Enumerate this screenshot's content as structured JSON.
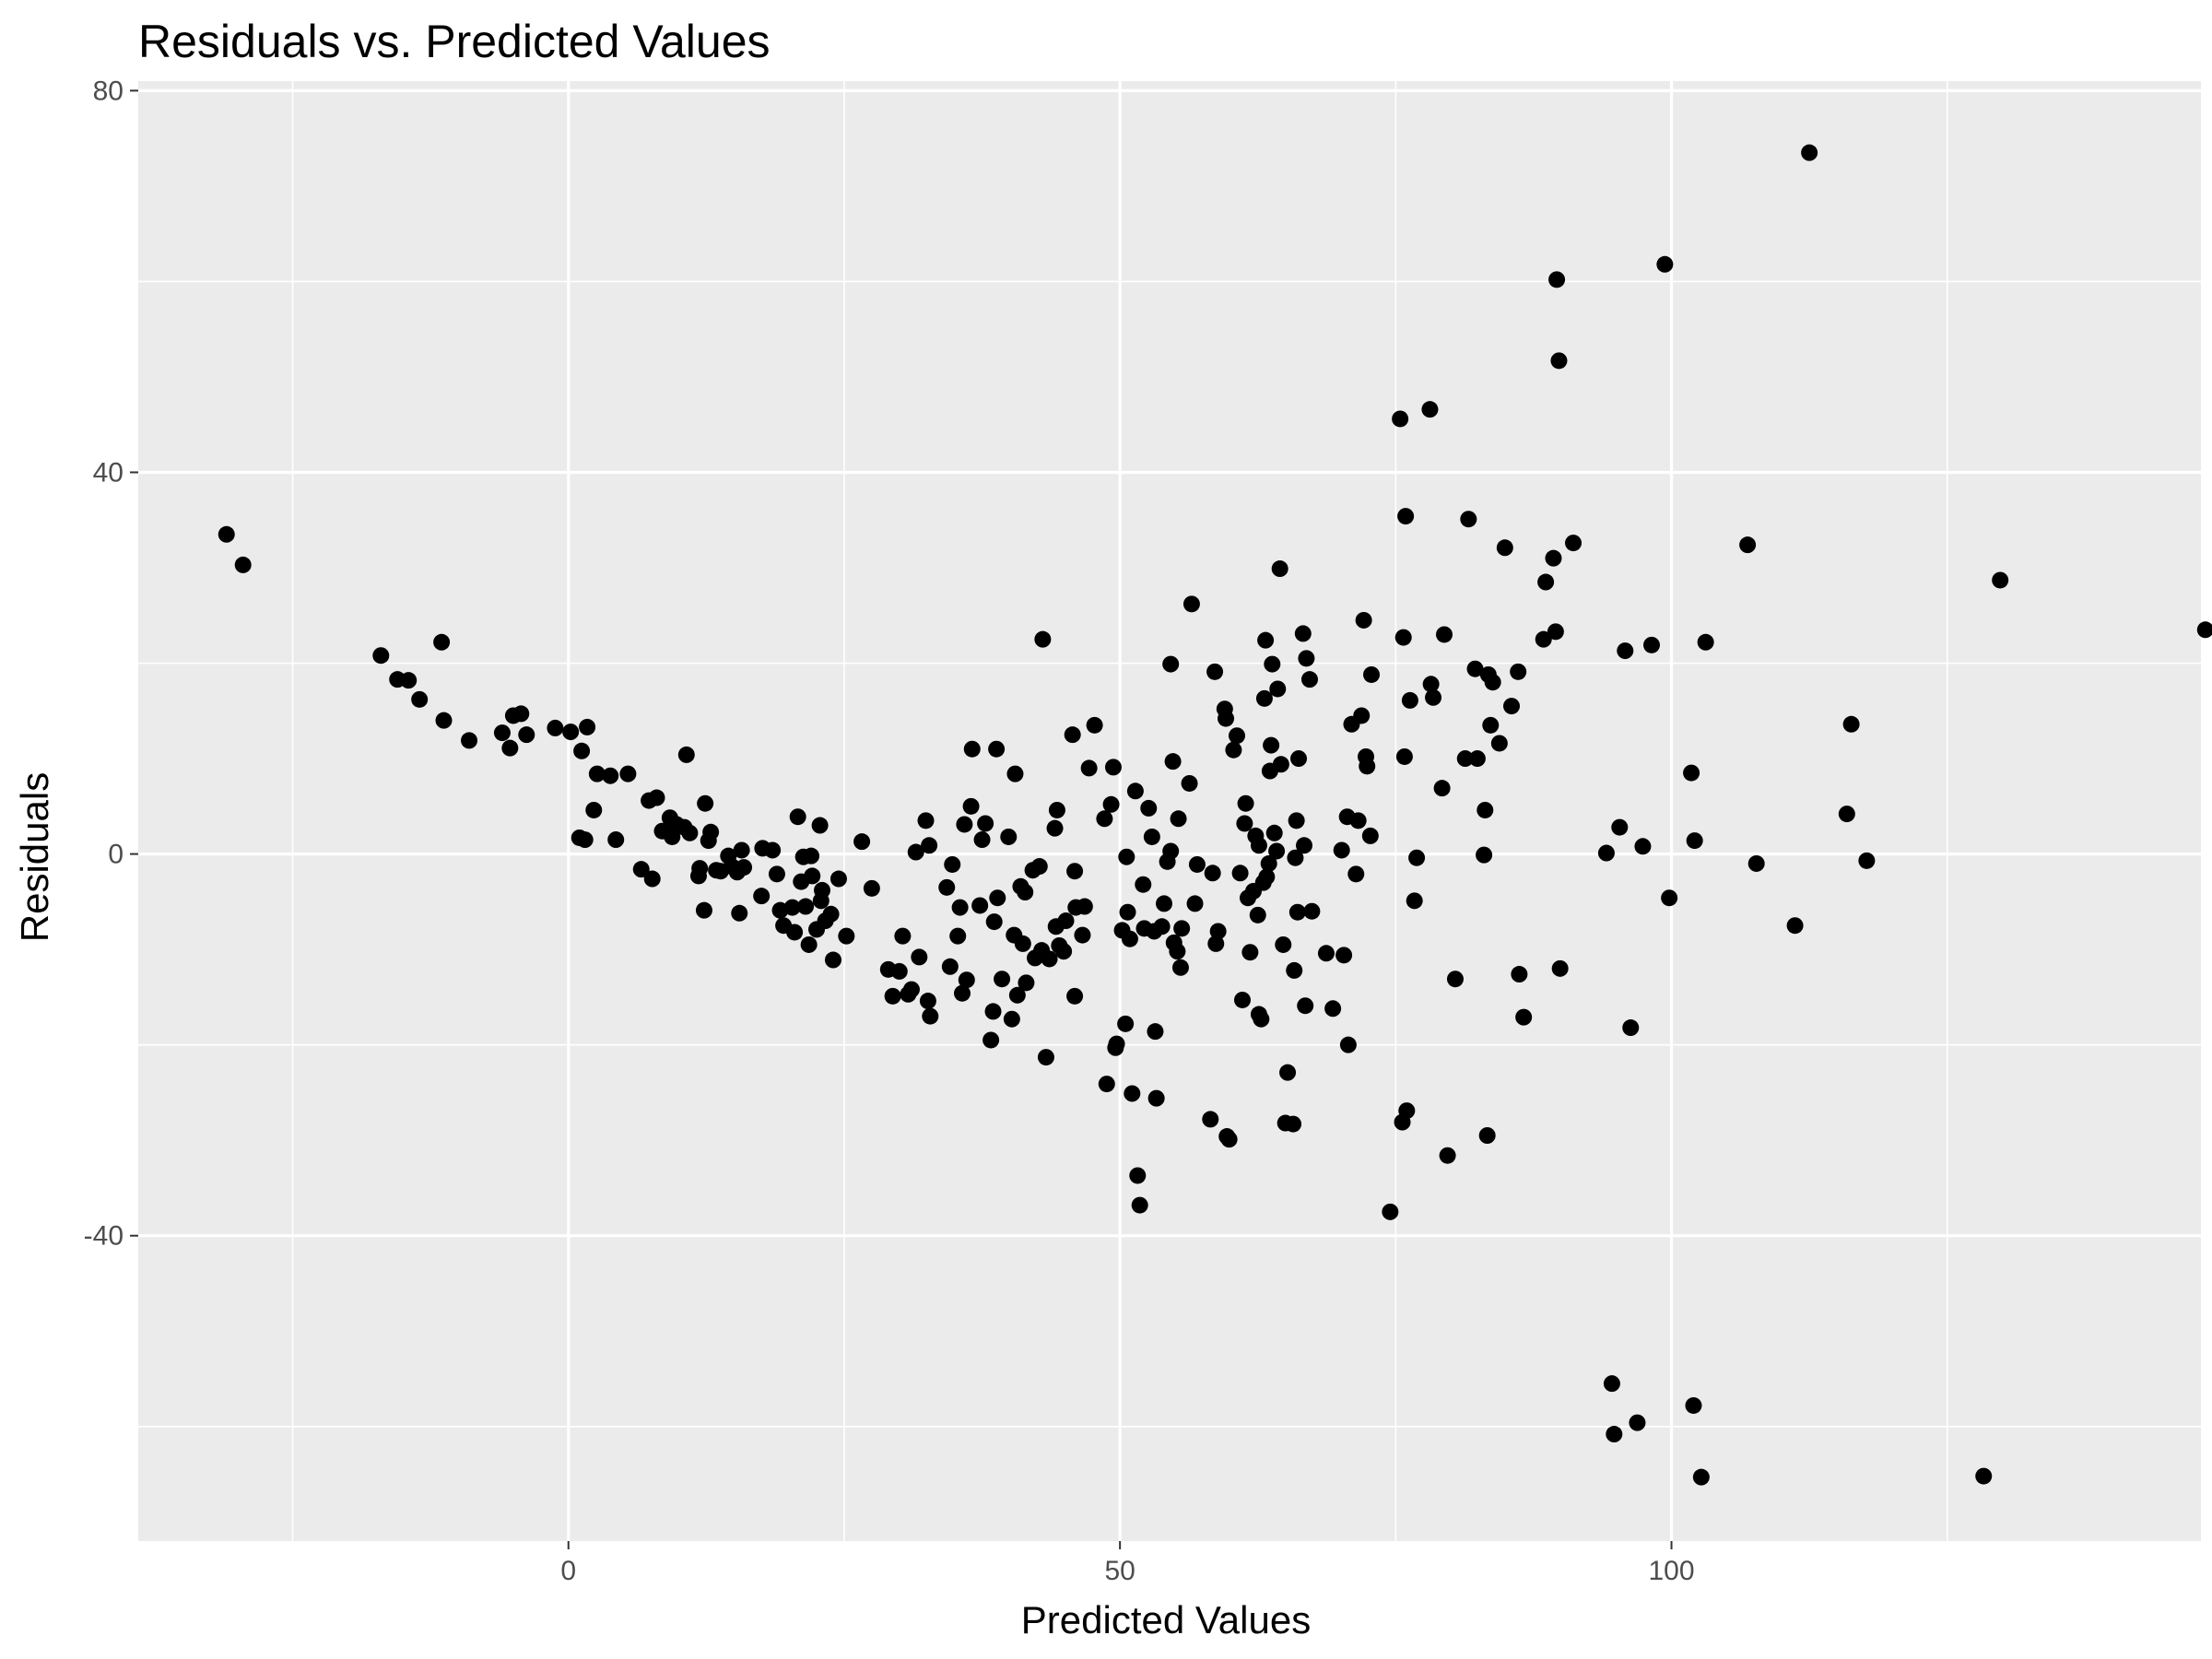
{
  "chart_data": {
    "type": "scatter",
    "title": "Residuals vs. Predicted Values",
    "xlabel": "Predicted Values",
    "ylabel": "Residuals",
    "xlim": [
      -39,
      148
    ],
    "ylim": [
      -72,
      81
    ],
    "x_ticks": [
      0,
      50,
      100
    ],
    "x_tick_labels": [
      "0",
      "50",
      "100"
    ],
    "y_ticks": [
      -40,
      0,
      40,
      80
    ],
    "y_tick_labels": [
      "-40",
      "0",
      "40",
      "80"
    ],
    "grid": true,
    "legend": "none",
    "colors": {
      "panel": "#ebebeb",
      "grid": "#ffffff",
      "point": "#000000"
    },
    "series": [
      {
        "points": [
          [
            -31,
            33.5
          ],
          [
            -29.5,
            30.3
          ],
          [
            -17,
            20.8
          ],
          [
            -15.5,
            18.3
          ],
          [
            -14.5,
            18.2
          ],
          [
            -13.5,
            16.2
          ],
          [
            -11.5,
            22.2
          ],
          [
            -11.3,
            14
          ],
          [
            -9,
            11.9
          ],
          [
            -6,
            12.7
          ],
          [
            -5.3,
            11.1
          ],
          [
            -5,
            14.5
          ],
          [
            -4.3,
            14.7
          ],
          [
            -3.8,
            12.5
          ],
          [
            -1.2,
            13.2
          ],
          [
            0.2,
            12.8
          ],
          [
            1,
            1.7
          ],
          [
            1.2,
            10.8
          ],
          [
            1.5,
            1.5
          ],
          [
            1.7,
            13.3
          ],
          [
            2.3,
            4.6
          ],
          [
            2.6,
            8.4
          ],
          [
            3.8,
            8.2
          ],
          [
            4.3,
            1.5
          ],
          [
            5.4,
            8.4
          ],
          [
            6.6,
            -1.6
          ],
          [
            7.3,
            5.6
          ],
          [
            7.6,
            -2.6
          ],
          [
            8,
            5.9
          ],
          [
            8.5,
            2.4
          ],
          [
            9.2,
            3.8
          ],
          [
            9.4,
            1.8
          ],
          [
            9.8,
            3.1
          ],
          [
            10.5,
            2.8
          ],
          [
            10.7,
            10.4
          ],
          [
            11,
            2.2
          ],
          [
            11.8,
            -2.3
          ],
          [
            11.9,
            -1.5
          ],
          [
            12.3,
            -5.9
          ],
          [
            12.4,
            5.3
          ],
          [
            12.7,
            1.4
          ],
          [
            12.9,
            2.3
          ],
          [
            13.4,
            -1.7
          ],
          [
            13.8,
            -1.8
          ],
          [
            14.5,
            -0.2
          ],
          [
            14.8,
            -1.3
          ],
          [
            15.3,
            -1.9
          ],
          [
            15.5,
            -6.2
          ],
          [
            15.7,
            0.4
          ],
          [
            15.9,
            -1.4
          ],
          [
            17.5,
            -4.4
          ],
          [
            17.6,
            0.6
          ],
          [
            18.5,
            0.4
          ],
          [
            18.9,
            -2.1
          ],
          [
            19.2,
            -5.9
          ],
          [
            19.5,
            -7.5
          ],
          [
            20.3,
            -5.6
          ],
          [
            20.5,
            -8.2
          ],
          [
            20.8,
            3.9
          ],
          [
            21.1,
            -2.9
          ],
          [
            21.3,
            -0.3
          ],
          [
            21.5,
            -5.5
          ],
          [
            21.8,
            -9.5
          ],
          [
            22,
            -0.2
          ],
          [
            22.1,
            -2.3
          ],
          [
            22.5,
            -7.9
          ],
          [
            22.8,
            3
          ],
          [
            22.9,
            -4.9
          ],
          [
            23,
            -3.8
          ],
          [
            23.3,
            -7
          ],
          [
            23.8,
            -6.3
          ],
          [
            24,
            -11.1
          ],
          [
            24.5,
            -2.6
          ],
          [
            25.2,
            -8.6
          ],
          [
            26.6,
            1.3
          ],
          [
            27.5,
            -3.6
          ],
          [
            29,
            -12.1
          ],
          [
            29.4,
            -14.9
          ],
          [
            30,
            -12.3
          ],
          [
            30.3,
            -8.6
          ],
          [
            30.8,
            -14.7
          ],
          [
            31.1,
            -14.2
          ],
          [
            31.5,
            0.2
          ],
          [
            31.8,
            -10.8
          ],
          [
            32.4,
            3.5
          ],
          [
            32.6,
            -15.4
          ],
          [
            32.7,
            0.9
          ],
          [
            32.8,
            -17
          ],
          [
            34.3,
            -3.5
          ],
          [
            34.6,
            -11.8
          ],
          [
            34.8,
            -1.1
          ],
          [
            35.3,
            -8.6
          ],
          [
            35.5,
            -5.6
          ],
          [
            35.7,
            -14.6
          ],
          [
            35.9,
            3.1
          ],
          [
            36.1,
            -13.2
          ],
          [
            36.5,
            5
          ],
          [
            36.6,
            11
          ],
          [
            37.3,
            -5.4
          ],
          [
            37.5,
            1.5
          ],
          [
            37.8,
            3.2
          ],
          [
            38.3,
            -19.5
          ],
          [
            38.5,
            -16.5
          ],
          [
            38.6,
            -7.1
          ],
          [
            38.8,
            11
          ],
          [
            38.9,
            -4.6
          ],
          [
            39.3,
            -13.1
          ],
          [
            39.9,
            1.8
          ],
          [
            40.2,
            -17.3
          ],
          [
            40.4,
            -8.5
          ],
          [
            40.5,
            8.4
          ],
          [
            40.7,
            -14.8
          ],
          [
            41,
            -3.4
          ],
          [
            41.2,
            -9.4
          ],
          [
            41.4,
            -4
          ],
          [
            41.5,
            -13.5
          ],
          [
            42.1,
            -1.7
          ],
          [
            42.3,
            -10.9
          ],
          [
            42.7,
            -1.3
          ],
          [
            42.9,
            -10.1
          ],
          [
            43,
            22.5
          ],
          [
            43.3,
            -21.3
          ],
          [
            43.6,
            -11
          ],
          [
            44.1,
            2.7
          ],
          [
            44.2,
            -7.6
          ],
          [
            44.3,
            4.6
          ],
          [
            44.5,
            -9.6
          ],
          [
            44.9,
            -10.2
          ],
          [
            45.1,
            -7
          ],
          [
            45.7,
            12.5
          ],
          [
            45.9,
            -1.8
          ],
          [
            45.9,
            -14.9
          ],
          [
            46,
            -5.6
          ],
          [
            46.6,
            -8.5
          ],
          [
            46.8,
            -5.5
          ],
          [
            47.2,
            9
          ],
          [
            47.7,
            13.5
          ],
          [
            48.6,
            3.7
          ],
          [
            48.8,
            -24.1
          ],
          [
            49.2,
            5.2
          ],
          [
            49.4,
            9.1
          ],
          [
            49.6,
            -20.3
          ],
          [
            49.7,
            -19.9
          ],
          [
            50.2,
            -8
          ],
          [
            50.5,
            -17.8
          ],
          [
            50.6,
            -0.3
          ],
          [
            50.7,
            -6.1
          ],
          [
            50.9,
            -8.9
          ],
          [
            51.1,
            -25.1
          ],
          [
            51.4,
            6.6
          ],
          [
            51.6,
            -33.7
          ],
          [
            51.8,
            -36.8
          ],
          [
            52.1,
            -3.2
          ],
          [
            52.2,
            -7.8
          ],
          [
            52.6,
            4.8
          ],
          [
            52.9,
            1.8
          ],
          [
            53.1,
            -8.1
          ],
          [
            53.2,
            -18.6
          ],
          [
            53.3,
            -25.6
          ],
          [
            53.8,
            -7.6
          ],
          [
            54,
            -5.2
          ],
          [
            54.3,
            -0.8
          ],
          [
            54.6,
            0.3
          ],
          [
            54.6,
            19.9
          ],
          [
            54.8,
            9.7
          ],
          [
            54.9,
            -9.3
          ],
          [
            55.2,
            -10.2
          ],
          [
            55.3,
            3.7
          ],
          [
            55.5,
            -11.9
          ],
          [
            55.6,
            -7.8
          ],
          [
            56.3,
            7.4
          ],
          [
            56.5,
            26.2
          ],
          [
            56.8,
            -5.2
          ],
          [
            57,
            -1.1
          ],
          [
            58.2,
            -27.8
          ],
          [
            58.4,
            -2
          ],
          [
            58.6,
            19.1
          ],
          [
            58.7,
            -9.4
          ],
          [
            58.9,
            -8.1
          ],
          [
            59.5,
            15.2
          ],
          [
            59.6,
            14.2
          ],
          [
            59.7,
            -29.6
          ],
          [
            59.9,
            -29.9
          ],
          [
            60.3,
            10.9
          ],
          [
            60.6,
            12.4
          ],
          [
            60.9,
            -2
          ],
          [
            61.1,
            -15.3
          ],
          [
            61.3,
            3.2
          ],
          [
            61.4,
            5.3
          ],
          [
            61.6,
            -4.6
          ],
          [
            61.8,
            -10.3
          ],
          [
            62.1,
            -3.9
          ],
          [
            62.3,
            1.9
          ],
          [
            62.5,
            -6.4
          ],
          [
            62.6,
            0.9
          ],
          [
            62.6,
            -16.8
          ],
          [
            62.8,
            -17.3
          ],
          [
            63,
            -3
          ],
          [
            63.1,
            16.3
          ],
          [
            63.2,
            22.4
          ],
          [
            63.3,
            -2.4
          ],
          [
            63.5,
            -1
          ],
          [
            63.6,
            8.7
          ],
          [
            63.7,
            11.4
          ],
          [
            63.8,
            19.9
          ],
          [
            64,
            2.2
          ],
          [
            64.2,
            0.3
          ],
          [
            64.3,
            17.3
          ],
          [
            64.5,
            29.9
          ],
          [
            64.6,
            9.4
          ],
          [
            64.8,
            -9.5
          ],
          [
            65,
            -28.2
          ],
          [
            65.2,
            -22.9
          ],
          [
            65.7,
            -28.3
          ],
          [
            65.8,
            -12.2
          ],
          [
            65.9,
            -0.4
          ],
          [
            66,
            3.5
          ],
          [
            66.1,
            -6.1
          ],
          [
            66.2,
            10
          ],
          [
            66.6,
            23.1
          ],
          [
            66.7,
            0.9
          ],
          [
            66.8,
            -15.9
          ],
          [
            66.9,
            20.5
          ],
          [
            67.2,
            18.3
          ],
          [
            67.4,
            -6
          ],
          [
            68.7,
            -10.4
          ],
          [
            69.3,
            -16.2
          ],
          [
            70.1,
            0.4
          ],
          [
            70.3,
            -10.6
          ],
          [
            70.6,
            3.9
          ],
          [
            70.7,
            -20
          ],
          [
            71,
            13.6
          ],
          [
            71.4,
            -2.1
          ],
          [
            71.6,
            3.5
          ],
          [
            71.9,
            14.5
          ],
          [
            72.1,
            24.5
          ],
          [
            72.3,
            10.2
          ],
          [
            72.4,
            9.2
          ],
          [
            72.7,
            1.9
          ],
          [
            72.8,
            18.8
          ],
          [
            74.5,
            -37.5
          ],
          [
            75.4,
            45.6
          ],
          [
            75.6,
            -28.1
          ],
          [
            75.7,
            22.7
          ],
          [
            75.8,
            10.2
          ],
          [
            75.9,
            35.4
          ],
          [
            76,
            -26.9
          ],
          [
            76.3,
            16.1
          ],
          [
            76.7,
            -4.9
          ],
          [
            76.9,
            -0.4
          ],
          [
            78.1,
            46.6
          ],
          [
            78.2,
            17.8
          ],
          [
            78.4,
            16.4
          ],
          [
            79.2,
            6.9
          ],
          [
            79.4,
            23
          ],
          [
            79.7,
            -31.6
          ],
          [
            80.4,
            -13.1
          ],
          [
            81.3,
            10
          ],
          [
            81.6,
            35.1
          ],
          [
            82.2,
            19.4
          ],
          [
            82.4,
            10
          ],
          [
            83,
            -0.1
          ],
          [
            83.1,
            4.6
          ],
          [
            83.3,
            -29.5
          ],
          [
            83.4,
            18.8
          ],
          [
            83.6,
            13.5
          ],
          [
            83.8,
            18
          ],
          [
            84.4,
            11.6
          ],
          [
            84.9,
            32.1
          ],
          [
            85.5,
            15.5
          ],
          [
            86.1,
            19.1
          ],
          [
            86.2,
            -12.6
          ],
          [
            86.6,
            -17.1
          ],
          [
            88.4,
            22.5
          ],
          [
            88.6,
            28.5
          ],
          [
            89.3,
            31
          ],
          [
            89.5,
            23.3
          ],
          [
            89.6,
            60.2
          ],
          [
            89.8,
            51.7
          ],
          [
            89.9,
            -12
          ],
          [
            91.1,
            32.6
          ],
          [
            94.1,
            0.1
          ],
          [
            94.6,
            -55.5
          ],
          [
            94.8,
            -60.8
          ],
          [
            95.3,
            2.8
          ],
          [
            95.8,
            21.3
          ],
          [
            96.3,
            -18.2
          ],
          [
            96.9,
            -59.6
          ],
          [
            97.4,
            0.8
          ],
          [
            98.2,
            21.9
          ],
          [
            99.4,
            61.8
          ],
          [
            99.8,
            -4.6
          ],
          [
            101.8,
            8.5
          ],
          [
            102,
            -57.8
          ],
          [
            102.1,
            1.4
          ],
          [
            102.7,
            -65.3
          ],
          [
            103.1,
            22.2
          ],
          [
            106.9,
            32.4
          ],
          [
            107.7,
            -1
          ],
          [
            111.2,
            -7.5
          ],
          [
            112.5,
            73.5
          ],
          [
            115.9,
            4.2
          ],
          [
            116.3,
            13.6
          ],
          [
            117.7,
            -0.7
          ],
          [
            128.3,
            -65.2
          ],
          [
            129.8,
            28.7
          ],
          [
            148.4,
            23.5
          ]
        ]
      }
    ]
  }
}
